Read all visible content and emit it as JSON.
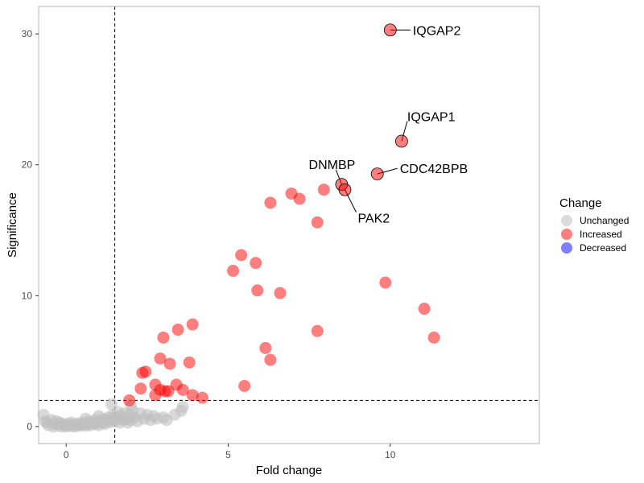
{
  "chart_data": {
    "type": "scatter",
    "xlabel": "Fold change",
    "ylabel": "Significance",
    "xlim": [
      -0.85,
      14.6
    ],
    "ylim": [
      -1.3,
      32.1
    ],
    "xticks": [
      0,
      5,
      10
    ],
    "yticks": [
      0,
      10,
      20,
      30
    ],
    "grid": false,
    "thresholds": {
      "x": 1.5,
      "y": 2
    },
    "legend": {
      "title": "Change",
      "position": "right",
      "entries": [
        {
          "label": "Unchanged",
          "color": "#cccccc",
          "opacity": 0.7
        },
        {
          "label": "Increased",
          "color": "#ff0000",
          "opacity": 0.5
        },
        {
          "label": "Decreased",
          "color": "#0000ff",
          "opacity": 0.5
        }
      ]
    },
    "series": [
      {
        "name": "Unchanged",
        "color": "#c0c0c0",
        "points": [
          [
            -0.7,
            0.9
          ],
          [
            -0.6,
            0.3
          ],
          [
            -0.55,
            0.1
          ],
          [
            -0.45,
            0.5
          ],
          [
            -0.4,
            0.0
          ],
          [
            -0.35,
            0.2
          ],
          [
            -0.3,
            0.4
          ],
          [
            -0.25,
            0.1
          ],
          [
            -0.2,
            0.3
          ],
          [
            -0.15,
            0.0
          ],
          [
            -0.1,
            0.2
          ],
          [
            -0.05,
            0.1
          ],
          [
            0.0,
            0.0
          ],
          [
            0.05,
            0.2
          ],
          [
            0.1,
            0.05
          ],
          [
            0.15,
            0.3
          ],
          [
            0.2,
            0.1
          ],
          [
            0.25,
            0.0
          ],
          [
            0.3,
            0.2
          ],
          [
            0.35,
            0.05
          ],
          [
            0.4,
            0.25
          ],
          [
            0.45,
            0.1
          ],
          [
            0.5,
            0.15
          ],
          [
            0.55,
            0.3
          ],
          [
            0.6,
            0.05
          ],
          [
            0.65,
            0.2
          ],
          [
            0.7,
            0.4
          ],
          [
            0.75,
            0.1
          ],
          [
            0.8,
            0.3
          ],
          [
            0.85,
            0.2
          ],
          [
            0.9,
            0.5
          ],
          [
            0.95,
            0.25
          ],
          [
            1.0,
            0.1
          ],
          [
            1.05,
            0.4
          ],
          [
            1.1,
            0.6
          ],
          [
            1.15,
            0.3
          ],
          [
            1.2,
            0.2
          ],
          [
            1.25,
            0.5
          ],
          [
            1.3,
            0.7
          ],
          [
            1.35,
            0.35
          ],
          [
            1.4,
            0.55
          ],
          [
            1.45,
            0.9
          ],
          [
            1.5,
            0.4
          ],
          [
            1.55,
            0.6
          ],
          [
            1.6,
            1.1
          ],
          [
            1.65,
            0.3
          ],
          [
            1.7,
            0.8
          ],
          [
            1.75,
            0.5
          ],
          [
            1.8,
            1.0
          ],
          [
            1.85,
            0.6
          ],
          [
            1.9,
            0.3
          ],
          [
            1.95,
            0.9
          ],
          [
            2.0,
            0.5
          ],
          [
            2.05,
            1.2
          ],
          [
            2.1,
            0.7
          ],
          [
            2.2,
            0.4
          ],
          [
            2.3,
            1.0
          ],
          [
            2.4,
            0.6
          ],
          [
            2.5,
            0.9
          ],
          [
            2.6,
            0.5
          ],
          [
            2.7,
            0.8
          ],
          [
            2.8,
            0.6
          ],
          [
            3.0,
            0.7
          ],
          [
            3.1,
            0.5
          ],
          [
            3.35,
            0.9
          ],
          [
            3.55,
            1.2
          ],
          [
            3.6,
            1.5
          ],
          [
            1.4,
            1.7
          ],
          [
            0.6,
            0.6
          ],
          [
            -0.65,
            0.4
          ],
          [
            2.0,
            1.6
          ],
          [
            1.0,
            0.8
          ]
        ]
      },
      {
        "name": "Increased",
        "color": "#ff0000",
        "points": [
          [
            1.95,
            2.0
          ],
          [
            2.3,
            2.9
          ],
          [
            2.35,
            4.1
          ],
          [
            2.45,
            4.2
          ],
          [
            2.75,
            3.2
          ],
          [
            2.75,
            2.4
          ],
          [
            2.9,
            2.8
          ],
          [
            2.9,
            5.2
          ],
          [
            3.0,
            6.8
          ],
          [
            3.05,
            2.7
          ],
          [
            3.15,
            2.7
          ],
          [
            3.2,
            4.8
          ],
          [
            3.4,
            3.2
          ],
          [
            3.45,
            7.4
          ],
          [
            3.6,
            2.8
          ],
          [
            3.8,
            4.9
          ],
          [
            3.9,
            2.4
          ],
          [
            3.9,
            7.8
          ],
          [
            4.2,
            2.2
          ],
          [
            5.15,
            11.9
          ],
          [
            5.4,
            13.1
          ],
          [
            5.5,
            3.1
          ],
          [
            5.85,
            12.5
          ],
          [
            5.9,
            10.4
          ],
          [
            6.15,
            6.0
          ],
          [
            6.3,
            5.1
          ],
          [
            6.3,
            17.1
          ],
          [
            6.6,
            10.2
          ],
          [
            6.95,
            17.8
          ],
          [
            7.2,
            17.4
          ],
          [
            7.75,
            15.6
          ],
          [
            7.75,
            7.3
          ],
          [
            7.95,
            18.1
          ],
          [
            9.85,
            11.0
          ],
          [
            11.05,
            9.0
          ],
          [
            11.35,
            6.8
          ]
        ]
      }
    ],
    "labeled_points": [
      {
        "label": "IQGAP2",
        "x": 10.0,
        "y": 30.3
      },
      {
        "label": "IQGAP1",
        "x": 10.35,
        "y": 21.8
      },
      {
        "label": "CDC42BPB",
        "x": 9.6,
        "y": 19.3
      },
      {
        "label": "DNMBP",
        "x": 8.5,
        "y": 18.5
      },
      {
        "label": "PAK2",
        "x": 8.6,
        "y": 18.1
      }
    ]
  }
}
